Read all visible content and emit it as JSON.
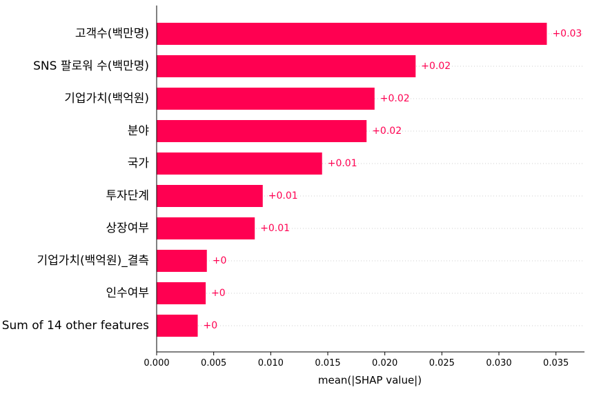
{
  "chart_data": {
    "type": "bar",
    "orientation": "horizontal",
    "categories": [
      "고객수(백만명)",
      "SNS 팔로워 수(백만명)",
      "기업가치(백억원)",
      "분야",
      "국가",
      "투자단계",
      "상장여부",
      "기업가치(백억원)_결측",
      "인수여부",
      "Sum of 14 other features"
    ],
    "values": [
      0.0342,
      0.0227,
      0.0191,
      0.0184,
      0.0145,
      0.0093,
      0.0086,
      0.0044,
      0.0043,
      0.0036
    ],
    "value_labels": [
      "+0.03",
      "+0.02",
      "+0.02",
      "+0.02",
      "+0.01",
      "+0.01",
      "+0.01",
      "+0",
      "+0",
      "+0"
    ],
    "xlabel": "mean(|SHAP value|)",
    "xlim": [
      0,
      0.0375
    ],
    "xticks": [
      0.0,
      0.005,
      0.01,
      0.015,
      0.02,
      0.025,
      0.03,
      0.035
    ],
    "xtick_labels": [
      "0.000",
      "0.005",
      "0.010",
      "0.015",
      "0.020",
      "0.025",
      "0.030",
      "0.035"
    ],
    "bar_color": "#ff0051",
    "grid": "dotted horizontal guide lines per row"
  }
}
